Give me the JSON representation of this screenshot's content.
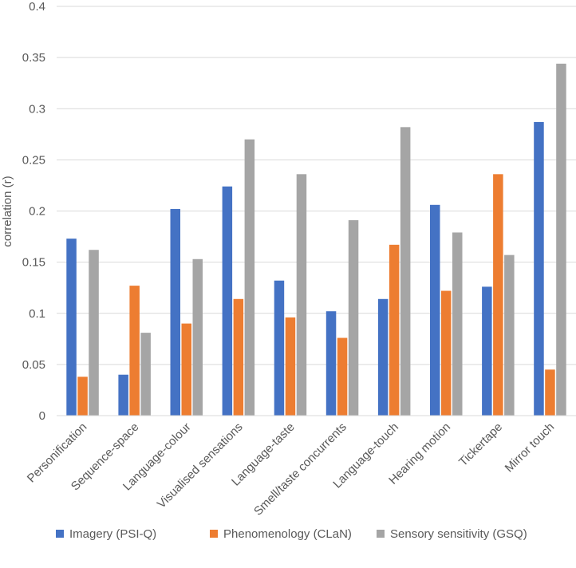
{
  "chart_data": {
    "type": "bar",
    "title": "",
    "xlabel": "",
    "ylabel": "correlation (r)",
    "ylim": [
      0,
      0.4
    ],
    "yticks": [
      0,
      0.05,
      0.1,
      0.15,
      0.2,
      0.25,
      0.3,
      0.35,
      0.4
    ],
    "ytick_labels": [
      "0",
      "0.05",
      "0.1",
      "0.15",
      "0.2",
      "0.25",
      "0.3",
      "0.35",
      "0.4"
    ],
    "grid": true,
    "legend_position": "bottom",
    "categories": [
      "Personification",
      "Sequence-space",
      "Language-colour",
      "Visualised sensations",
      "Language-taste",
      "Smell/taste concurrents",
      "Language-touch",
      "Hearing motion",
      "Tickertape",
      "Mirror touch"
    ],
    "series": [
      {
        "name": "Imagery (PSI-Q)",
        "color": "#4472C4",
        "values": [
          0.173,
          0.04,
          0.202,
          0.224,
          0.132,
          0.102,
          0.114,
          0.206,
          0.126,
          0.287
        ]
      },
      {
        "name": "Phenomenology (CLaN)",
        "color": "#ED7D31",
        "values": [
          0.038,
          0.127,
          0.09,
          0.114,
          0.096,
          0.076,
          0.167,
          0.122,
          0.236,
          0.045
        ]
      },
      {
        "name": "Sensory sensitivity (GSQ)",
        "color": "#A5A5A5",
        "values": [
          0.162,
          0.081,
          0.153,
          0.27,
          0.236,
          0.191,
          0.282,
          0.179,
          0.157,
          0.344
        ]
      }
    ]
  }
}
